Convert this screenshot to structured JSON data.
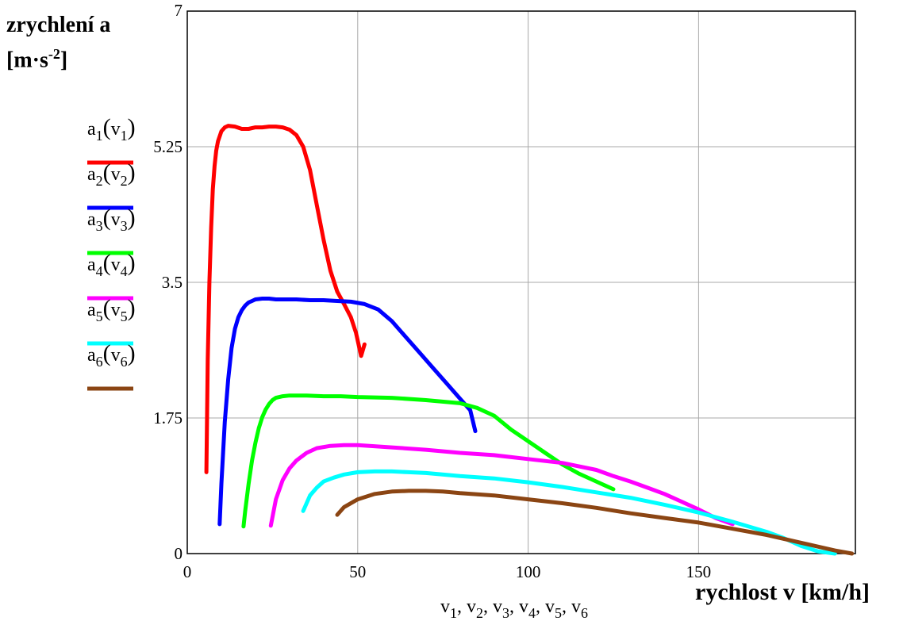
{
  "chart_data": {
    "type": "line",
    "ylabel_lines": [
      "zrychlení a",
      "[m·s",
      "-2",
      "]"
    ],
    "xlabel": "rychlost v [km/h]",
    "x_axis_expr": "v1, v2, v3, v4, v5, v6",
    "xlim": [
      0,
      196
    ],
    "ylim": [
      0,
      7
    ],
    "xticks": [
      0,
      50,
      100,
      150
    ],
    "yticks": [
      0,
      1.75,
      3.5,
      5.25,
      7
    ],
    "ytick_labels": [
      "0",
      "1.75",
      "3.5",
      "5.25",
      "7"
    ],
    "grid": true,
    "legend_placement": "left",
    "series": [
      {
        "name": "a1(v1)",
        "color": "#ff0000",
        "x": [
          5.6,
          6,
          6.5,
          7,
          7.5,
          8,
          8.5,
          9,
          10,
          11,
          12,
          14,
          16,
          18,
          20,
          22,
          24,
          26,
          28,
          30,
          32,
          34,
          36,
          38,
          40,
          42,
          44,
          46,
          48,
          49.5,
          51,
          52
        ],
        "y": [
          1.05,
          2.5,
          3.5,
          4.2,
          4.7,
          5.0,
          5.2,
          5.32,
          5.45,
          5.5,
          5.52,
          5.51,
          5.48,
          5.48,
          5.5,
          5.5,
          5.51,
          5.51,
          5.5,
          5.47,
          5.4,
          5.25,
          4.95,
          4.5,
          4.05,
          3.65,
          3.38,
          3.22,
          3.05,
          2.85,
          2.55,
          2.7
        ]
      },
      {
        "name": "a2(v2)",
        "color": "#0000ff",
        "x": [
          9.5,
          10,
          11,
          12,
          13,
          14,
          15,
          16,
          17,
          18,
          19,
          20,
          22,
          24,
          26,
          28,
          32,
          36,
          40,
          44,
          48,
          52,
          56,
          60,
          64,
          68,
          72,
          76,
          80,
          83,
          84.5
        ],
        "y": [
          0.38,
          0.9,
          1.7,
          2.25,
          2.65,
          2.9,
          3.05,
          3.14,
          3.2,
          3.24,
          3.26,
          3.28,
          3.29,
          3.29,
          3.28,
          3.28,
          3.28,
          3.27,
          3.27,
          3.26,
          3.25,
          3.22,
          3.15,
          3.0,
          2.8,
          2.6,
          2.4,
          2.2,
          2.0,
          1.85,
          1.58
        ]
      },
      {
        "name": "a3(v3)",
        "color": "#00ff00",
        "x": [
          16.5,
          17,
          18,
          19,
          20,
          21,
          22,
          23,
          24,
          25,
          26,
          28,
          30,
          32,
          35,
          40,
          45,
          50,
          60,
          70,
          80,
          85,
          90,
          95,
          100,
          105,
          110,
          115,
          120,
          125
        ],
        "y": [
          0.35,
          0.55,
          0.9,
          1.2,
          1.43,
          1.62,
          1.76,
          1.86,
          1.93,
          1.98,
          2.01,
          2.03,
          2.04,
          2.04,
          2.04,
          2.03,
          2.03,
          2.02,
          2.01,
          1.98,
          1.94,
          1.88,
          1.78,
          1.6,
          1.45,
          1.3,
          1.15,
          1.03,
          0.93,
          0.83
        ]
      },
      {
        "name": "a4(v4)",
        "color": "#ff00ff",
        "x": [
          24.5,
          26,
          28,
          30,
          32,
          35,
          38,
          42,
          46,
          50,
          60,
          70,
          80,
          90,
          100,
          110,
          120,
          125,
          130,
          135,
          140,
          145,
          150,
          155,
          160
        ],
        "y": [
          0.36,
          0.7,
          0.95,
          1.1,
          1.2,
          1.3,
          1.36,
          1.39,
          1.4,
          1.4,
          1.37,
          1.34,
          1.3,
          1.27,
          1.22,
          1.17,
          1.08,
          1.0,
          0.93,
          0.85,
          0.77,
          0.67,
          0.57,
          0.46,
          0.38
        ]
      },
      {
        "name": "a5(v5)",
        "color": "#00ffff",
        "x": [
          34,
          36,
          38,
          40,
          43,
          46,
          50,
          55,
          60,
          65,
          70,
          80,
          90,
          100,
          110,
          120,
          130,
          140,
          150,
          160,
          170,
          175,
          180,
          185,
          190
        ],
        "y": [
          0.55,
          0.75,
          0.85,
          0.93,
          0.98,
          1.02,
          1.05,
          1.06,
          1.06,
          1.05,
          1.04,
          1.0,
          0.97,
          0.92,
          0.86,
          0.79,
          0.72,
          0.63,
          0.53,
          0.41,
          0.28,
          0.2,
          0.1,
          0.03,
          0.0
        ]
      },
      {
        "name": "a6(v6)",
        "color": "#8b4513",
        "x": [
          44,
          46,
          50,
          55,
          60,
          65,
          70,
          75,
          80,
          90,
          100,
          110,
          120,
          130,
          140,
          150,
          160,
          170,
          180,
          185,
          190,
          195
        ],
        "y": [
          0.5,
          0.6,
          0.7,
          0.77,
          0.8,
          0.81,
          0.81,
          0.8,
          0.78,
          0.75,
          0.7,
          0.65,
          0.59,
          0.52,
          0.46,
          0.4,
          0.32,
          0.24,
          0.14,
          0.09,
          0.04,
          0.0
        ]
      }
    ]
  }
}
